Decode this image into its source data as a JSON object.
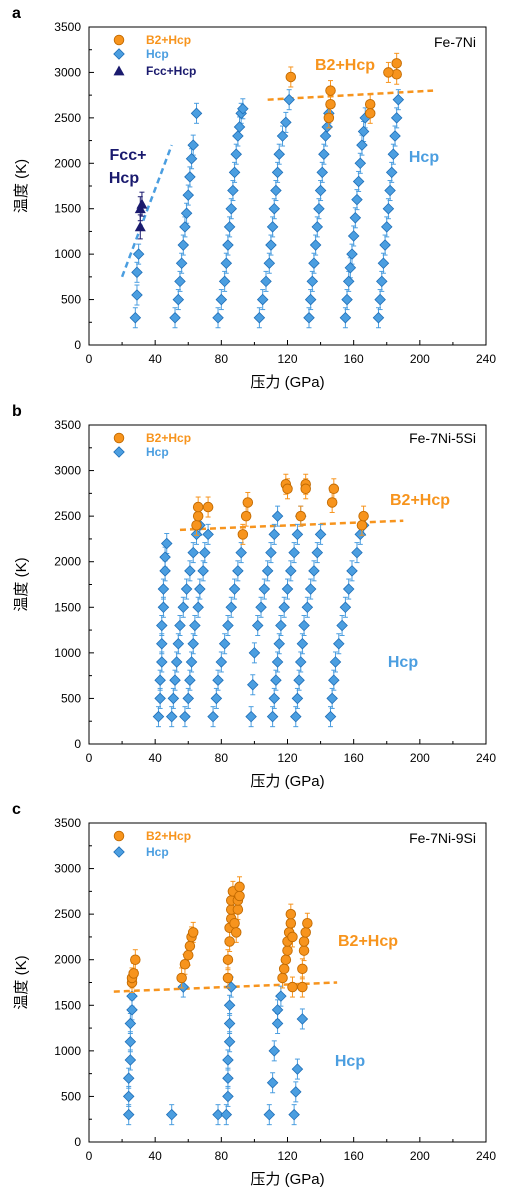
{
  "colors": {
    "b2hcp": "#f7941d",
    "b2hcp_edge": "#c26a00",
    "hcp": "#4b9ee0",
    "hcp_edge": "#1f6fb8",
    "fcc": "#1a1a6e",
    "trend_orange": "#f7941d",
    "trend_blue": "#4b9ee0"
  },
  "chart_data": [
    {
      "type": "scatter",
      "panel_letter": "a",
      "title": "Fe-7Ni",
      "xlabel": "压力 (GPa)",
      "ylabel": "温度 (K)",
      "xlim": [
        0,
        240
      ],
      "ylim": [
        0,
        3500
      ],
      "xticks": [
        0,
        40,
        80,
        120,
        160,
        200,
        240
      ],
      "yticks": [
        0,
        500,
        1000,
        1500,
        2000,
        2500,
        3000,
        3500
      ],
      "legend": [
        {
          "label": "B2+Hcp",
          "marker": "circle",
          "color": "#f7941d"
        },
        {
          "label": "Hcp",
          "marker": "diamond",
          "color": "#4b9ee0"
        },
        {
          "label": "Fcc+Hcp",
          "marker": "triangle",
          "color": "#1a1a6e"
        }
      ],
      "region_labels": [
        {
          "text": "Fcc+",
          "color": "#1a1a6e"
        },
        {
          "text": "Hcp",
          "color": "#1a1a6e"
        },
        {
          "text": "B2+Hcp",
          "color": "#f7941d"
        },
        {
          "text": "Hcp",
          "color": "#4b9ee0"
        }
      ],
      "hcp_runs": [
        [
          [
            28,
            300
          ],
          [
            29,
            550
          ],
          [
            29,
            800
          ],
          [
            30,
            1000
          ]
        ],
        [
          [
            52,
            300
          ],
          [
            54,
            500
          ],
          [
            55,
            700
          ],
          [
            56,
            900
          ],
          [
            57,
            1100
          ],
          [
            58,
            1300
          ],
          [
            59,
            1450
          ],
          [
            60,
            1650
          ],
          [
            61,
            1850
          ],
          [
            62,
            2050
          ],
          [
            63,
            2200
          ],
          [
            65,
            2550
          ]
        ],
        [
          [
            78,
            300
          ],
          [
            80,
            500
          ],
          [
            82,
            700
          ],
          [
            83,
            900
          ],
          [
            84,
            1100
          ],
          [
            85,
            1300
          ],
          [
            86,
            1500
          ],
          [
            87,
            1700
          ],
          [
            88,
            1900
          ],
          [
            89,
            2100
          ],
          [
            90,
            2300
          ],
          [
            91,
            2400
          ],
          [
            92,
            2550
          ],
          [
            93,
            2600
          ]
        ],
        [
          [
            103,
            300
          ],
          [
            105,
            500
          ],
          [
            107,
            700
          ],
          [
            109,
            900
          ],
          [
            110,
            1100
          ],
          [
            111,
            1300
          ],
          [
            112,
            1500
          ],
          [
            113,
            1700
          ],
          [
            114,
            1900
          ],
          [
            115,
            2100
          ],
          [
            117,
            2300
          ],
          [
            119,
            2450
          ],
          [
            121,
            2700
          ]
        ],
        [
          [
            133,
            300
          ],
          [
            134,
            500
          ],
          [
            135,
            700
          ],
          [
            136,
            900
          ],
          [
            137,
            1100
          ],
          [
            138,
            1300
          ],
          [
            139,
            1500
          ],
          [
            140,
            1700
          ],
          [
            141,
            1900
          ],
          [
            142,
            2100
          ],
          [
            143,
            2300
          ],
          [
            144,
            2400
          ],
          [
            145,
            2550
          ]
        ],
        [
          [
            155,
            300
          ],
          [
            156,
            500
          ],
          [
            157,
            700
          ],
          [
            158,
            850
          ],
          [
            159,
            1000
          ],
          [
            160,
            1200
          ],
          [
            161,
            1400
          ],
          [
            162,
            1600
          ],
          [
            163,
            1800
          ],
          [
            164,
            2000
          ],
          [
            165,
            2200
          ],
          [
            166,
            2350
          ],
          [
            167,
            2500
          ]
        ],
        [
          [
            175,
            300
          ],
          [
            176,
            500
          ],
          [
            177,
            700
          ],
          [
            178,
            900
          ],
          [
            179,
            1100
          ],
          [
            180,
            1300
          ],
          [
            181,
            1500
          ],
          [
            182,
            1700
          ],
          [
            183,
            1900
          ],
          [
            184,
            2100
          ],
          [
            185,
            2300
          ],
          [
            186,
            2500
          ],
          [
            187,
            2700
          ]
        ]
      ],
      "b2hcp_points": [
        [
          122,
          2950
        ],
        [
          146,
          2800
        ],
        [
          146,
          2650
        ],
        [
          145,
          2500
        ],
        [
          170,
          2650
        ],
        [
          170,
          2550
        ],
        [
          186,
          3100
        ],
        [
          186,
          2980
        ],
        [
          181,
          3000
        ]
      ],
      "fcc_points": [
        [
          31,
          1300
        ],
        [
          31,
          1500
        ],
        [
          32,
          1550
        ]
      ],
      "trend_lines": [
        {
          "color": "#4b9ee0",
          "points": [
            [
              20,
              750
            ],
            [
              50,
              2200
            ]
          ]
        },
        {
          "color": "#f7941d",
          "points": [
            [
              108,
              2700
            ],
            [
              208,
              2800
            ]
          ]
        }
      ]
    },
    {
      "type": "scatter",
      "panel_letter": "b",
      "title": "Fe-7Ni-5Si",
      "xlabel": "压力 (GPa)",
      "ylabel": "温度 (K)",
      "xlim": [
        0,
        240
      ],
      "ylim": [
        0,
        3500
      ],
      "xticks": [
        0,
        40,
        80,
        120,
        160,
        200,
        240
      ],
      "yticks": [
        0,
        500,
        1000,
        1500,
        2000,
        2500,
        3000,
        3500
      ],
      "legend": [
        {
          "label": "B2+Hcp",
          "marker": "circle",
          "color": "#f7941d"
        },
        {
          "label": "Hcp",
          "marker": "diamond",
          "color": "#4b9ee0"
        }
      ],
      "region_labels": [
        {
          "text": "B2+Hcp",
          "color": "#f7941d"
        },
        {
          "text": "Hcp",
          "color": "#4b9ee0"
        }
      ],
      "hcp_runs": [
        [
          [
            42,
            300
          ],
          [
            43,
            500
          ],
          [
            43,
            700
          ],
          [
            44,
            900
          ],
          [
            44,
            1100
          ],
          [
            44,
            1300
          ],
          [
            45,
            1500
          ],
          [
            45,
            1700
          ],
          [
            46,
            1900
          ],
          [
            46,
            2050
          ],
          [
            47,
            2200
          ]
        ],
        [
          [
            50,
            300
          ],
          [
            51,
            500
          ],
          [
            52,
            700
          ],
          [
            53,
            900
          ],
          [
            54,
            1100
          ],
          [
            55,
            1300
          ],
          [
            57,
            1500
          ],
          [
            59,
            1700
          ],
          [
            61,
            1900
          ],
          [
            63,
            2100
          ],
          [
            65,
            2300
          ],
          [
            67,
            2400
          ]
        ],
        [
          [
            58,
            300
          ],
          [
            60,
            500
          ],
          [
            61,
            700
          ],
          [
            62,
            900
          ],
          [
            63,
            1100
          ],
          [
            64,
            1300
          ],
          [
            66,
            1500
          ],
          [
            67,
            1700
          ],
          [
            69,
            1900
          ],
          [
            70,
            2100
          ],
          [
            72,
            2300
          ]
        ],
        [
          [
            75,
            300
          ],
          [
            77,
            500
          ],
          [
            78,
            700
          ],
          [
            80,
            900
          ],
          [
            82,
            1100
          ],
          [
            84,
            1300
          ],
          [
            86,
            1500
          ],
          [
            88,
            1700
          ],
          [
            90,
            1900
          ],
          [
            92,
            2100
          ]
        ],
        [
          [
            98,
            300
          ],
          [
            99,
            650
          ],
          [
            100,
            1000
          ],
          [
            102,
            1300
          ],
          [
            104,
            1500
          ],
          [
            106,
            1700
          ],
          [
            108,
            1900
          ],
          [
            110,
            2100
          ],
          [
            112,
            2300
          ],
          [
            114,
            2500
          ]
        ],
        [
          [
            111,
            300
          ],
          [
            112,
            500
          ],
          [
            113,
            700
          ],
          [
            114,
            900
          ],
          [
            115,
            1100
          ],
          [
            116,
            1300
          ],
          [
            118,
            1500
          ],
          [
            120,
            1700
          ],
          [
            122,
            1900
          ],
          [
            124,
            2100
          ],
          [
            126,
            2300
          ],
          [
            128,
            2500
          ]
        ],
        [
          [
            125,
            300
          ],
          [
            126,
            500
          ],
          [
            127,
            700
          ],
          [
            128,
            900
          ],
          [
            129,
            1100
          ],
          [
            130,
            1300
          ],
          [
            132,
            1500
          ],
          [
            134,
            1700
          ],
          [
            136,
            1900
          ],
          [
            138,
            2100
          ],
          [
            140,
            2300
          ]
        ],
        [
          [
            146,
            300
          ],
          [
            147,
            500
          ],
          [
            148,
            700
          ],
          [
            149,
            900
          ],
          [
            151,
            1100
          ],
          [
            153,
            1300
          ],
          [
            155,
            1500
          ],
          [
            157,
            1700
          ],
          [
            159,
            1900
          ],
          [
            162,
            2100
          ],
          [
            164,
            2300
          ],
          [
            166,
            2400
          ]
        ]
      ],
      "b2hcp_points": [
        [
          65,
          2400
        ],
        [
          66,
          2500
        ],
        [
          66,
          2600
        ],
        [
          72,
          2600
        ],
        [
          93,
          2300
        ],
        [
          95,
          2500
        ],
        [
          96,
          2650
        ],
        [
          119,
          2850
        ],
        [
          120,
          2800
        ],
        [
          128,
          2500
        ],
        [
          131,
          2850
        ],
        [
          131,
          2800
        ],
        [
          147,
          2650
        ],
        [
          148,
          2800
        ],
        [
          165,
          2400
        ],
        [
          166,
          2500
        ]
      ],
      "fcc_points": [],
      "trend_lines": [
        {
          "color": "#f7941d",
          "points": [
            [
              55,
              2350
            ],
            [
              190,
              2450
            ]
          ]
        }
      ]
    },
    {
      "type": "scatter",
      "panel_letter": "c",
      "title": "Fe-7Ni-9Si",
      "xlabel": "压力 (GPa)",
      "ylabel": "温度 (K)",
      "xlim": [
        0,
        240
      ],
      "ylim": [
        0,
        3500
      ],
      "xticks": [
        0,
        40,
        80,
        120,
        160,
        200,
        240
      ],
      "yticks": [
        0,
        500,
        1000,
        1500,
        2000,
        2500,
        3000,
        3500
      ],
      "legend": [
        {
          "label": "B2+Hcp",
          "marker": "circle",
          "color": "#f7941d"
        },
        {
          "label": "Hcp",
          "marker": "diamond",
          "color": "#4b9ee0"
        }
      ],
      "region_labels": [
        {
          "text": "B2+Hcp",
          "color": "#f7941d"
        },
        {
          "text": "Hcp",
          "color": "#4b9ee0"
        }
      ],
      "hcp_runs": [
        [
          [
            24,
            300
          ],
          [
            24,
            500
          ],
          [
            24,
            700
          ],
          [
            25,
            900
          ],
          [
            25,
            1100
          ],
          [
            25,
            1300
          ],
          [
            26,
            1450
          ],
          [
            26,
            1600
          ]
        ],
        [
          [
            50,
            300
          ],
          [
            57,
            1700
          ]
        ],
        [
          [
            78,
            300
          ],
          [
            83,
            300
          ]
        ],
        [
          [
            84,
            500
          ],
          [
            84,
            700
          ],
          [
            84,
            900
          ],
          [
            85,
            1100
          ],
          [
            85,
            1300
          ],
          [
            85,
            1500
          ],
          [
            86,
            1700
          ]
        ],
        [
          [
            109,
            300
          ],
          [
            111,
            650
          ],
          [
            112,
            1000
          ],
          [
            114,
            1300
          ],
          [
            114,
            1450
          ],
          [
            116,
            1600
          ]
        ],
        [
          [
            124,
            300
          ],
          [
            125,
            550
          ],
          [
            126,
            800
          ],
          [
            129,
            1350
          ]
        ]
      ],
      "b2hcp_points": [
        [
          26,
          1750
        ],
        [
          26,
          1800
        ],
        [
          27,
          1850
        ],
        [
          28,
          2000
        ],
        [
          56,
          1800
        ],
        [
          58,
          1950
        ],
        [
          60,
          2050
        ],
        [
          61,
          2150
        ],
        [
          62,
          2250
        ],
        [
          63,
          2300
        ],
        [
          84,
          1800
        ],
        [
          84,
          2000
        ],
        [
          85,
          2200
        ],
        [
          85,
          2350
        ],
        [
          86,
          2450
        ],
        [
          86,
          2550
        ],
        [
          86,
          2650
        ],
        [
          87,
          2750
        ],
        [
          88,
          2400
        ],
        [
          89,
          2300
        ],
        [
          90,
          2550
        ],
        [
          90,
          2650
        ],
        [
          91,
          2700
        ],
        [
          91,
          2800
        ],
        [
          117,
          1800
        ],
        [
          118,
          1900
        ],
        [
          119,
          2000
        ],
        [
          120,
          2100
        ],
        [
          120,
          2200
        ],
        [
          121,
          2300
        ],
        [
          122,
          2400
        ],
        [
          122,
          2500
        ],
        [
          123,
          2250
        ],
        [
          123,
          1700
        ],
        [
          129,
          1700
        ],
        [
          129,
          1900
        ],
        [
          130,
          2100
        ],
        [
          130,
          2200
        ],
        [
          131,
          2300
        ],
        [
          132,
          2400
        ]
      ],
      "fcc_points": [],
      "trend_lines": [
        {
          "color": "#f7941d",
          "points": [
            [
              15,
              1650
            ],
            [
              150,
              1750
            ]
          ]
        }
      ]
    }
  ]
}
